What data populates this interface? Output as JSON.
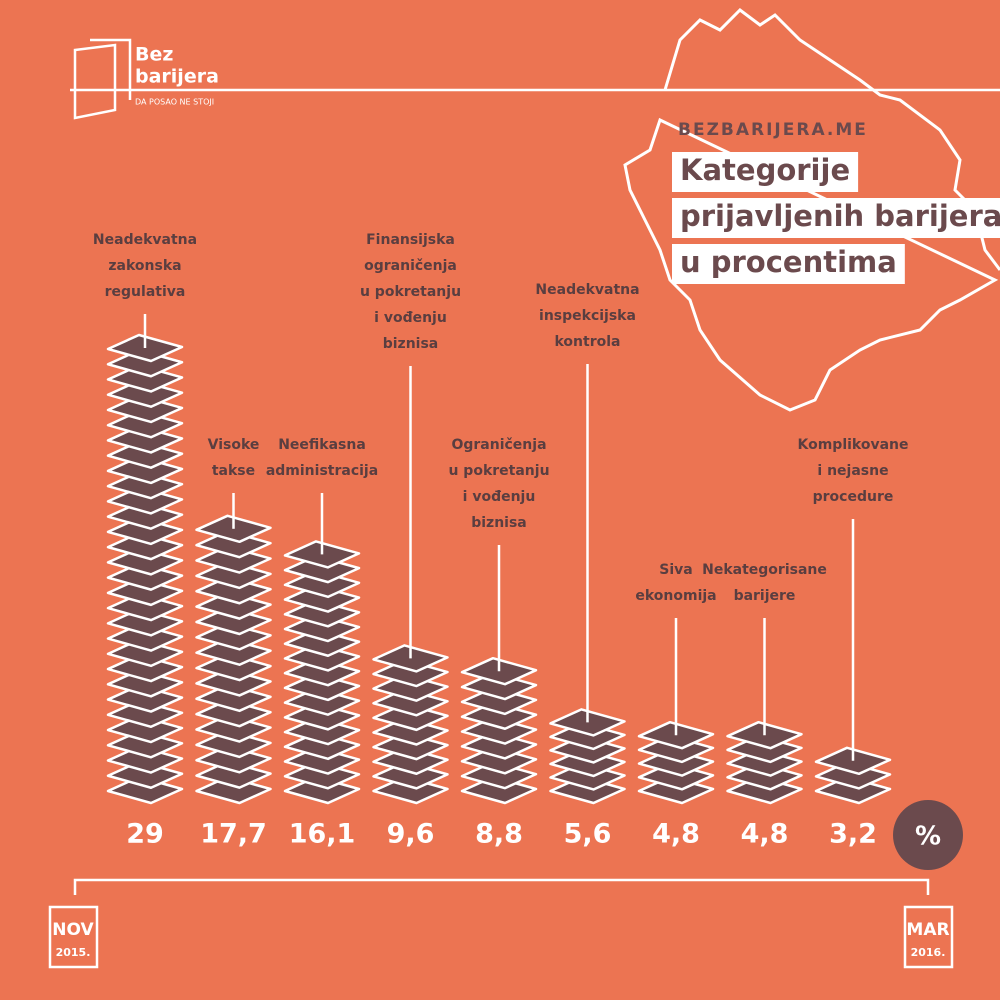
{
  "logo": {
    "line1": "Bez",
    "line2": "barijera",
    "tagline": "DA POSAO NE STOJI"
  },
  "site": "BEZBARIJERA.ME",
  "chart_data": {
    "type": "stack",
    "title": [
      "Kategorije",
      "prijavljenih barijera",
      "u procentima"
    ],
    "categories": [
      [
        "Neadekvatna",
        "zakonska",
        "regulativa"
      ],
      [
        "Visoke",
        "takse"
      ],
      [
        "Neefikasna",
        "administracija"
      ],
      [
        "Finansijska",
        "ograničenja",
        "u pokretanju",
        "i vođenju",
        "biznisa"
      ],
      [
        "Ograničenja",
        "u pokretanju",
        "i vođenju",
        "biznisa"
      ],
      [
        "Neadekvatna",
        "inspekcijska",
        "kontrola"
      ],
      [
        "Siva",
        "ekonomija"
      ],
      [
        "Nekategorisane",
        "barijere"
      ],
      [
        "Komplikovane",
        "i nejasne",
        "procedure"
      ]
    ],
    "values": [
      29,
      17.7,
      16.1,
      9.6,
      8.8,
      5.6,
      4.8,
      4.8,
      3.2
    ],
    "value_labels": [
      "29",
      "17,7",
      "16,1",
      "9,6",
      "8,8",
      "5,6",
      "4,8",
      "4,8",
      "3,2"
    ],
    "unit": "%",
    "color": "#6b4a4d",
    "period": {
      "start": [
        "NOV",
        "2015."
      ],
      "end": [
        "MAR",
        "2016."
      ]
    }
  }
}
